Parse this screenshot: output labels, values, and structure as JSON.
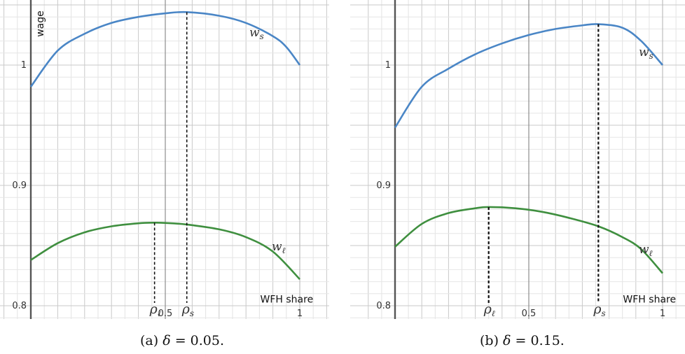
{
  "chart_data": [
    {
      "type": "line",
      "panel": "a",
      "caption_label": "(a)",
      "caption_symbol": "δ",
      "caption_value": "= 0.05.",
      "delta": 0.05,
      "xlabel": "WFH share",
      "ylabel": "wage",
      "xlim": [
        0,
        1
      ],
      "ylim": [
        0.8,
        1.05
      ],
      "grid": true,
      "yticks": [
        {
          "value": 1.0,
          "label": "1"
        },
        {
          "value": 0.9,
          "label": "0.9"
        },
        {
          "value": 0.8,
          "label": "0.8"
        }
      ],
      "xticks": [
        {
          "value": 0.5,
          "label": "0.5"
        },
        {
          "value": 1.0,
          "label": "1"
        }
      ],
      "series": [
        {
          "name": "w_s",
          "label_main": "w",
          "label_sub": "s",
          "color": "#4a86c6",
          "x": [
            0,
            0.1,
            0.2,
            0.3,
            0.4,
            0.5,
            0.58,
            0.7,
            0.8,
            0.9,
            0.95,
            1.0
          ],
          "y": [
            0.982,
            1.012,
            1.026,
            1.035,
            1.04,
            1.043,
            1.044,
            1.041,
            1.035,
            1.024,
            1.015,
            1.0
          ]
        },
        {
          "name": "w_ℓ",
          "label_main": "w",
          "label_sub": "ℓ",
          "color": "#3f8f3f",
          "x": [
            0,
            0.1,
            0.2,
            0.3,
            0.4,
            0.46,
            0.5,
            0.58,
            0.7,
            0.8,
            0.9,
            1.0
          ],
          "y": [
            0.838,
            0.852,
            0.861,
            0.866,
            0.8685,
            0.869,
            0.8688,
            0.8675,
            0.8635,
            0.857,
            0.845,
            0.822
          ]
        }
      ],
      "markers": [
        {
          "name": "ρ_ℓ",
          "sym": "ρ",
          "sub": "ℓ",
          "x": 0.46,
          "y": 0.869
        },
        {
          "name": "ρ_s",
          "sym": "ρ",
          "sub": "s",
          "x": 0.58,
          "y": 1.044
        }
      ]
    },
    {
      "type": "line",
      "panel": "b",
      "caption_label": "(b)",
      "caption_symbol": "δ",
      "caption_value": "= 0.15.",
      "delta": 0.15,
      "xlabel": "WFH share",
      "ylabel": "",
      "xlim": [
        0,
        1
      ],
      "ylim": [
        0.8,
        1.05
      ],
      "grid": true,
      "yticks": [
        {
          "value": 1.0,
          "label": "1"
        },
        {
          "value": 0.9,
          "label": "0.9"
        },
        {
          "value": 0.8,
          "label": "0.8"
        }
      ],
      "xticks": [
        {
          "value": 0.5,
          "label": "0.5"
        },
        {
          "value": 1.0,
          "label": "1"
        }
      ],
      "series": [
        {
          "name": "w_s",
          "label_main": "w",
          "label_sub": "s",
          "color": "#4a86c6",
          "x": [
            0,
            0.1,
            0.2,
            0.3,
            0.4,
            0.5,
            0.6,
            0.7,
            0.76,
            0.85,
            0.92,
            1.0
          ],
          "y": [
            0.948,
            0.982,
            0.997,
            1.009,
            1.018,
            1.025,
            1.03,
            1.033,
            1.034,
            1.031,
            1.02,
            1.0
          ]
        },
        {
          "name": "w_ℓ",
          "label_main": "w",
          "label_sub": "ℓ",
          "color": "#3f8f3f",
          "x": [
            0,
            0.1,
            0.2,
            0.3,
            0.35,
            0.45,
            0.55,
            0.65,
            0.76,
            0.85,
            0.92,
            1.0
          ],
          "y": [
            0.849,
            0.868,
            0.877,
            0.881,
            0.882,
            0.881,
            0.878,
            0.873,
            0.866,
            0.857,
            0.847,
            0.827
          ]
        }
      ],
      "markers": [
        {
          "name": "ρ_ℓ",
          "sym": "ρ",
          "sub": "ℓ",
          "x": 0.35,
          "y": 0.882
        },
        {
          "name": "ρ_s",
          "sym": "ρ",
          "sub": "s",
          "x": 0.76,
          "y": 1.034
        }
      ]
    }
  ]
}
